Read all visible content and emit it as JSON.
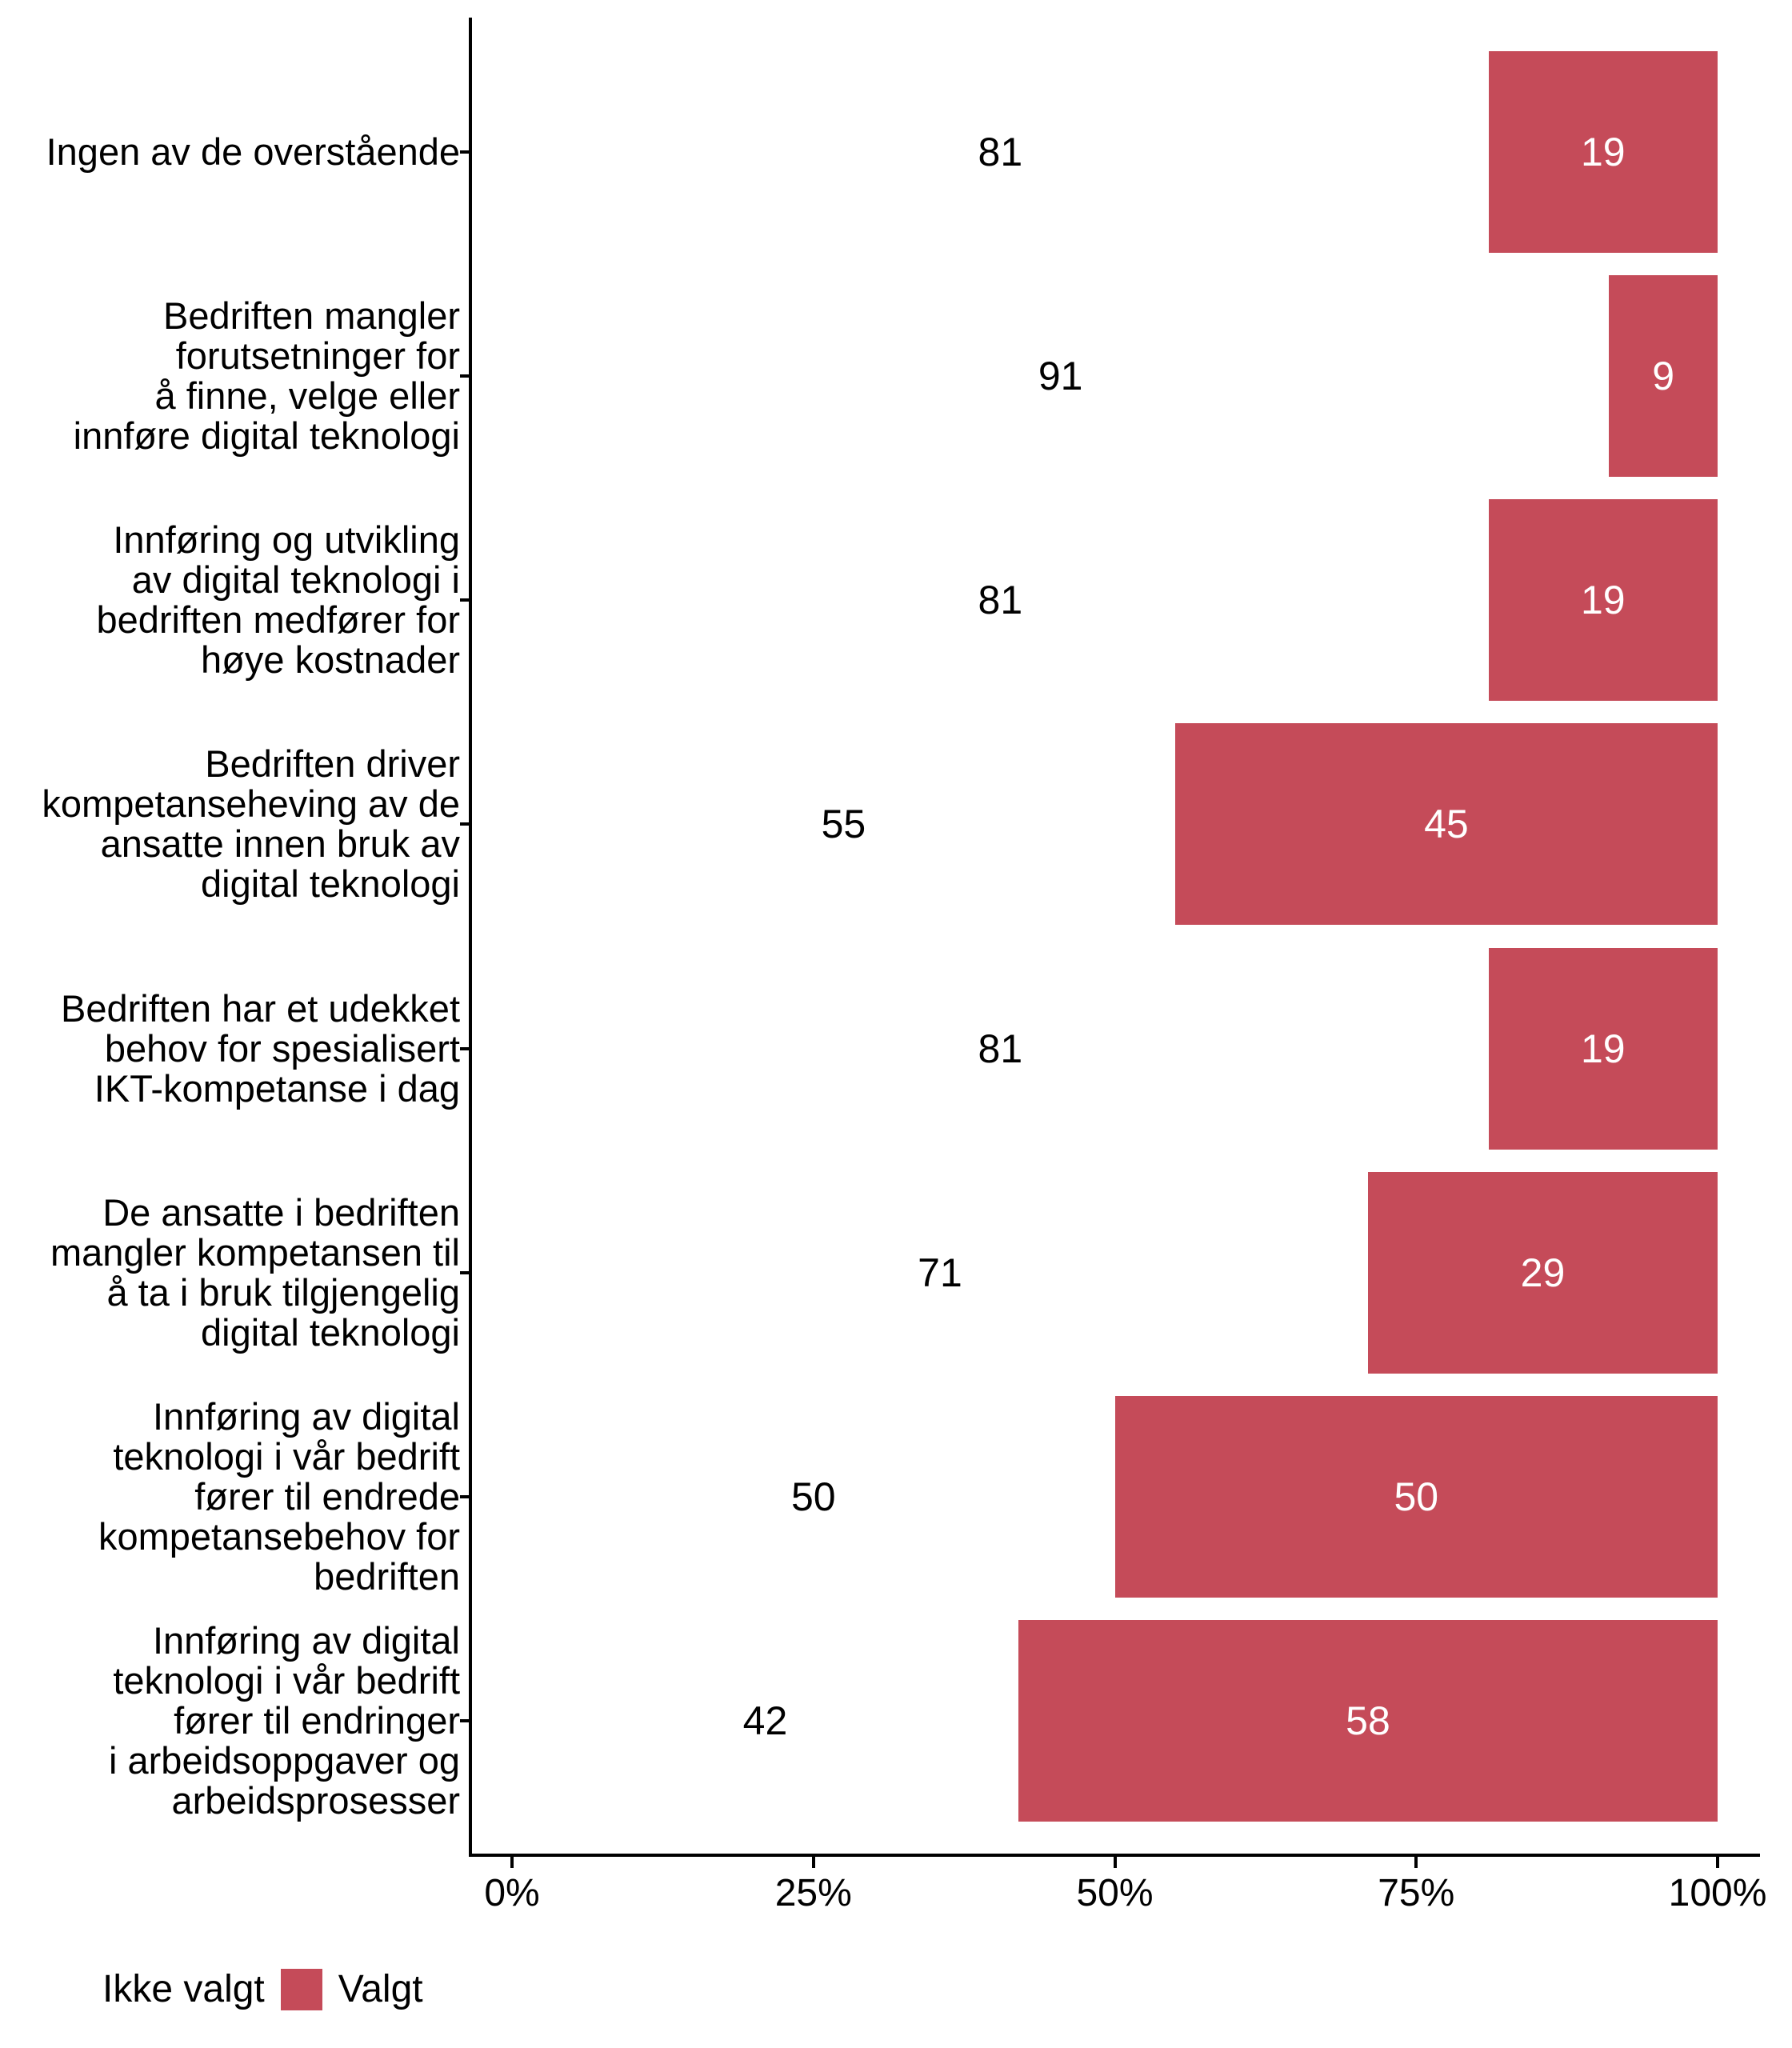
{
  "chart_data": {
    "type": "bar",
    "orientation": "horizontal",
    "stacked": true,
    "unit": "percent",
    "title": "",
    "xlabel": "",
    "ylabel": "",
    "xlim": [
      0,
      100
    ],
    "grid": false,
    "x_ticks": [
      "0%",
      "25%",
      "50%",
      "75%",
      "100%"
    ],
    "x_tick_values": [
      0,
      25,
      50,
      75,
      100
    ],
    "categories": [
      "Ingen av de overstående",
      "Bedriften mangler forutsetninger for å finne, velge eller innføre digital teknologi",
      "Innføring og utvikling av digital teknologi i bedriften medfører for høye kostnader",
      "Bedriften driver kompetanseheving av de ansatte innen bruk av digital teknologi",
      "Bedriften har et udekket behov for spesialisert IKT-kompetanse i dag",
      "De ansatte i bedriften mangler kompetansen til å ta i bruk tilgjengelig digital teknologi",
      "Innføring av digital teknologi i vår bedrift fører til endrede kompetansebehov for bedriften",
      "Innføring av digital teknologi i vår bedrift fører til endringer i arbeidsoppgaver og arbeidsprosesser"
    ],
    "category_lines": [
      [
        "Ingen av de overstående"
      ],
      [
        "Bedriften mangler",
        "forutsetninger for",
        "å finne, velge eller",
        "innføre digital teknologi"
      ],
      [
        "Innføring og utvikling",
        "av digital teknologi i",
        "bedriften medfører for",
        "høye kostnader"
      ],
      [
        "Bedriften driver",
        "kompetanseheving av de",
        "ansatte innen bruk av",
        "digital teknologi"
      ],
      [
        "Bedriften har et udekket",
        "behov for spesialisert",
        "IKT-kompetanse i dag"
      ],
      [
        "De ansatte i bedriften",
        "mangler kompetansen til",
        "å ta i bruk tilgjengelig",
        "digital teknologi"
      ],
      [
        "Innføring av digital",
        "teknologi i vår bedrift",
        "fører til endrede",
        "kompetansebehov for",
        "bedriften"
      ],
      [
        "Innføring av digital",
        "teknologi i vår bedrift",
        "fører til endringer",
        "i arbeidsoppgaver og",
        "arbeidsprosesser"
      ]
    ],
    "series": [
      {
        "name": "Ikke valgt",
        "color": "#FFFFFF",
        "label_color": "#000000",
        "values": [
          81,
          91,
          81,
          55,
          81,
          71,
          50,
          42
        ]
      },
      {
        "name": "Valgt",
        "color": "#C54B59",
        "label_color": "#FFFFFF",
        "values": [
          19,
          9,
          19,
          45,
          19,
          29,
          50,
          58
        ]
      }
    ],
    "legend": {
      "position": "bottom-left",
      "items": [
        {
          "label": "Ikke valgt",
          "color": "#FFFFFF"
        },
        {
          "label": "Valgt",
          "color": "#C54B59"
        }
      ]
    }
  }
}
